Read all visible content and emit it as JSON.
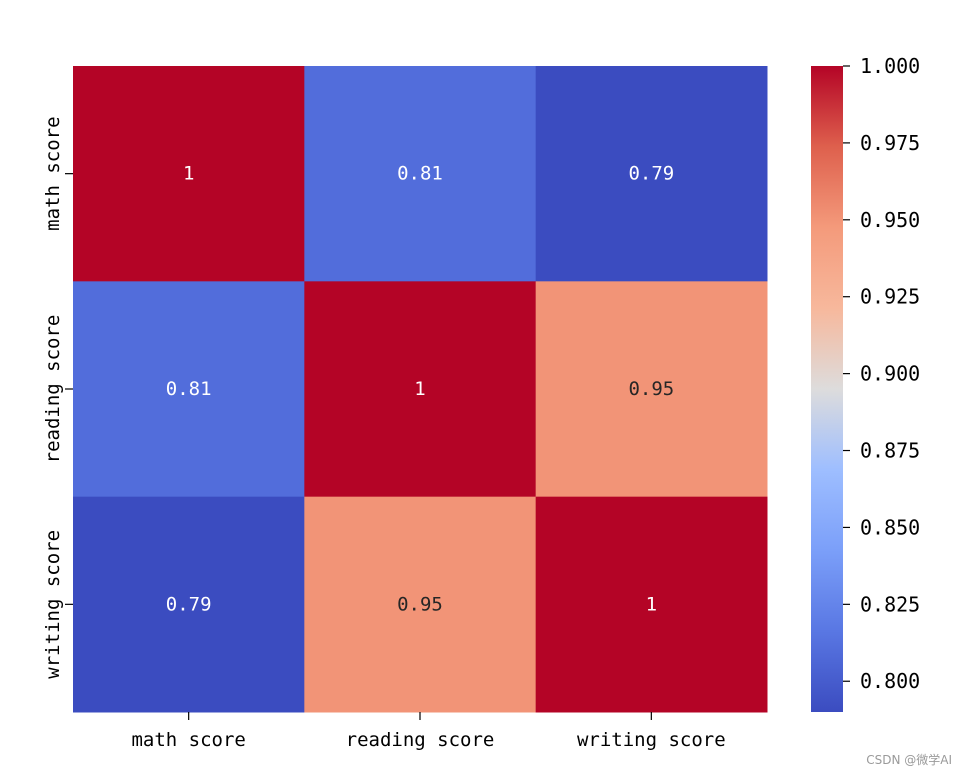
{
  "chart_data": {
    "type": "heatmap",
    "title": "",
    "rows": [
      "math score",
      "reading score",
      "writing score"
    ],
    "cols": [
      "math score",
      "reading score",
      "writing score"
    ],
    "values": [
      [
        1.0,
        0.81,
        0.79
      ],
      [
        0.81,
        1.0,
        0.95
      ],
      [
        0.79,
        0.95,
        1.0
      ]
    ],
    "annotations": [
      [
        "1",
        "0.81",
        "0.79"
      ],
      [
        "0.81",
        "1",
        "0.95"
      ],
      [
        "0.79",
        "0.95",
        "1"
      ]
    ],
    "colormap": "coolwarm",
    "colorbar": {
      "min": 0.79,
      "max": 1.0,
      "ticks": [
        0.8,
        0.825,
        0.85,
        0.875,
        0.9,
        0.925,
        0.95,
        0.975,
        1.0
      ],
      "tick_labels": [
        "0.800",
        "0.825",
        "0.850",
        "0.875",
        "0.900",
        "0.925",
        "0.950",
        "0.975",
        "1.000"
      ]
    }
  },
  "watermark": "CSDN @微学AI"
}
